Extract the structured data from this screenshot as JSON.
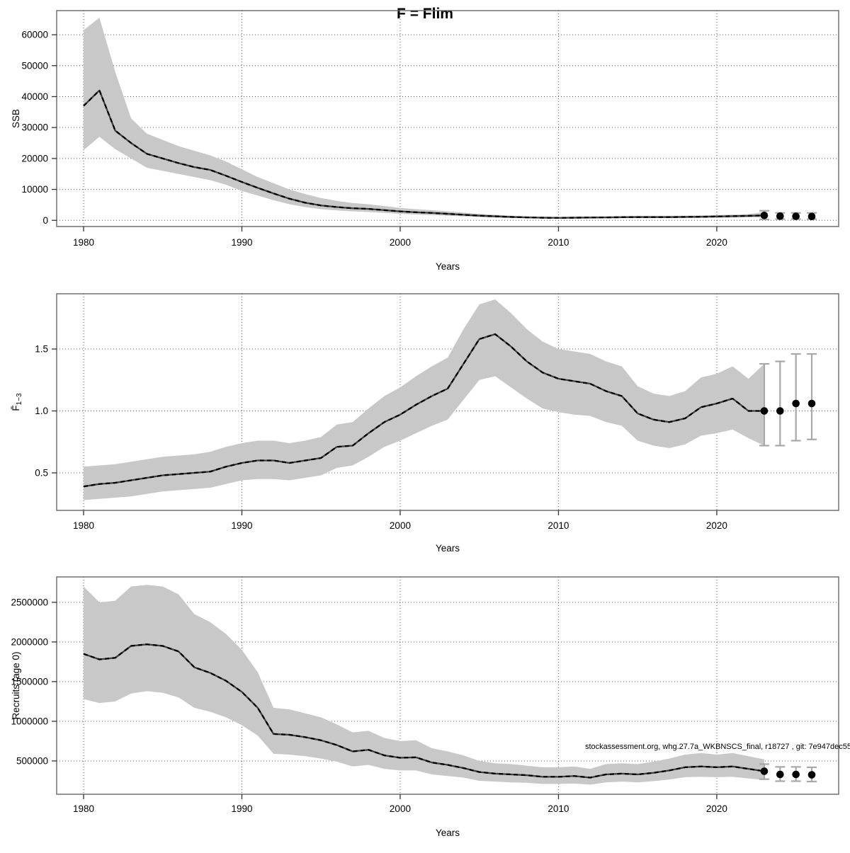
{
  "title": "F = Flim",
  "annotation": "stockassessment.org, whg.27.7a_WKBNSCS_final, r18727 , git: 7e947dec55",
  "colors": {
    "band": "#c8c8c8",
    "median_line": "#000000",
    "median_line_under": "#3f3f3f",
    "error_bar": "#a8a8a8",
    "point": "#000000",
    "grid": "#555555",
    "box": "#666666",
    "tick": "#333333"
  },
  "chart_data": [
    {
      "type": "line",
      "panel": "SSB",
      "ylabel": "SSB",
      "xlabel": "Years",
      "xlim": [
        1978.3,
        2027.7
      ],
      "ylim": [
        -2000,
        67800
      ],
      "x_ticks": [
        1980,
        1990,
        2000,
        2010,
        2020
      ],
      "y_ticks": [
        0,
        10000,
        20000,
        30000,
        40000,
        50000,
        60000
      ],
      "y_tick_labels": [
        "0",
        "10000",
        "20000",
        "30000",
        "40000",
        "50000",
        "60000"
      ],
      "grid": true,
      "legend": "none",
      "years": [
        1980,
        1981,
        1982,
        1983,
        1984,
        1985,
        1986,
        1987,
        1988,
        1989,
        1990,
        1991,
        1992,
        1993,
        1994,
        1995,
        1996,
        1997,
        1998,
        1999,
        2000,
        2001,
        2002,
        2003,
        2004,
        2005,
        2006,
        2007,
        2008,
        2009,
        2010,
        2011,
        2012,
        2013,
        2014,
        2015,
        2016,
        2017,
        2018,
        2019,
        2020,
        2021,
        2022,
        2023
      ],
      "median": [
        37000,
        42000,
        29000,
        25000,
        21500,
        20000,
        18500,
        17200,
        16300,
        14400,
        12400,
        10500,
        8700,
        7000,
        5700,
        4800,
        4300,
        3900,
        3700,
        3300,
        2900,
        2600,
        2400,
        2100,
        1800,
        1500,
        1300,
        1100,
        950,
        850,
        800,
        850,
        900,
        950,
        1000,
        1050,
        1050,
        1050,
        1100,
        1150,
        1250,
        1350,
        1450,
        1600
      ],
      "band_high": [
        61500,
        65500,
        48000,
        33000,
        28000,
        26000,
        24000,
        22500,
        21000,
        19000,
        16500,
        14000,
        12000,
        10000,
        8500,
        7200,
        6300,
        5600,
        5200,
        4600,
        4000,
        3600,
        3300,
        2900,
        2500,
        2100,
        1800,
        1500,
        1300,
        1200,
        1100,
        1200,
        1250,
        1300,
        1400,
        1450,
        1450,
        1450,
        1500,
        1600,
        1700,
        1850,
        2000,
        2700
      ],
      "band_low": [
        22700,
        27000,
        23000,
        20000,
        17000,
        16000,
        15000,
        14000,
        13000,
        11500,
        9500,
        8000,
        6500,
        5200,
        4300,
        3600,
        3200,
        2900,
        2700,
        2400,
        2100,
        1900,
        1700,
        1500,
        1300,
        1100,
        900,
        750,
        650,
        600,
        550,
        600,
        620,
        650,
        700,
        720,
        720,
        720,
        750,
        800,
        850,
        900,
        1000,
        900
      ],
      "forecast": {
        "years": [
          2023,
          2024,
          2025,
          2026
        ],
        "values": [
          1600,
          1350,
          1300,
          1250
        ],
        "low": [
          300,
          400,
          400,
          400
        ],
        "high": [
          3100,
          2400,
          2400,
          2400
        ]
      }
    },
    {
      "type": "line",
      "panel": "Fbar",
      "ylabel": "F1-3",
      "ylabel_main": "F̄",
      "ylabel_sub": "1−3",
      "xlabel": "Years",
      "xlim": [
        1978.3,
        2027.7
      ],
      "ylim": [
        0.197,
        1.946
      ],
      "x_ticks": [
        1980,
        1990,
        2000,
        2010,
        2020
      ],
      "y_ticks": [
        0.5,
        1.0,
        1.5
      ],
      "y_tick_labels": [
        "0.5",
        "1.0",
        "1.5"
      ],
      "grid": true,
      "legend": "none",
      "years": [
        1980,
        1981,
        1982,
        1983,
        1984,
        1985,
        1986,
        1987,
        1988,
        1989,
        1990,
        1991,
        1992,
        1993,
        1994,
        1995,
        1996,
        1997,
        1998,
        1999,
        2000,
        2001,
        2002,
        2003,
        2004,
        2005,
        2006,
        2007,
        2008,
        2009,
        2010,
        2011,
        2012,
        2013,
        2014,
        2015,
        2016,
        2017,
        2018,
        2019,
        2020,
        2021,
        2022,
        2023
      ],
      "median": [
        0.39,
        0.41,
        0.42,
        0.44,
        0.46,
        0.48,
        0.49,
        0.5,
        0.51,
        0.55,
        0.58,
        0.6,
        0.6,
        0.58,
        0.6,
        0.62,
        0.71,
        0.72,
        0.82,
        0.91,
        0.97,
        1.05,
        1.12,
        1.18,
        1.38,
        1.58,
        1.62,
        1.52,
        1.4,
        1.31,
        1.26,
        1.24,
        1.22,
        1.16,
        1.12,
        0.98,
        0.93,
        0.91,
        0.94,
        1.03,
        1.06,
        1.1,
        1.0,
        1.0
      ],
      "band_high": [
        0.55,
        0.56,
        0.57,
        0.59,
        0.61,
        0.63,
        0.64,
        0.65,
        0.67,
        0.71,
        0.74,
        0.76,
        0.76,
        0.74,
        0.76,
        0.79,
        0.89,
        0.91,
        1.02,
        1.12,
        1.19,
        1.28,
        1.36,
        1.43,
        1.66,
        1.86,
        1.9,
        1.79,
        1.66,
        1.56,
        1.5,
        1.48,
        1.46,
        1.4,
        1.36,
        1.2,
        1.14,
        1.12,
        1.16,
        1.27,
        1.3,
        1.36,
        1.26,
        1.38
      ],
      "band_low": [
        0.28,
        0.29,
        0.3,
        0.31,
        0.33,
        0.35,
        0.36,
        0.37,
        0.38,
        0.41,
        0.44,
        0.45,
        0.45,
        0.44,
        0.46,
        0.48,
        0.54,
        0.56,
        0.63,
        0.71,
        0.76,
        0.82,
        0.88,
        0.93,
        1.09,
        1.25,
        1.28,
        1.19,
        1.1,
        1.02,
        0.99,
        0.97,
        0.96,
        0.91,
        0.88,
        0.76,
        0.72,
        0.7,
        0.73,
        0.8,
        0.82,
        0.85,
        0.78,
        0.72
      ],
      "forecast": {
        "years": [
          2023,
          2024,
          2025,
          2026
        ],
        "values": [
          1.0,
          1.0,
          1.06,
          1.06
        ],
        "low": [
          0.72,
          0.72,
          0.76,
          0.77
        ],
        "high": [
          1.38,
          1.4,
          1.46,
          1.46
        ]
      }
    },
    {
      "type": "line",
      "panel": "Recruits",
      "ylabel": "Recruits (age 0)",
      "xlabel": "Years",
      "xlim": [
        1978.3,
        2027.7
      ],
      "ylim": [
        80000,
        2820000
      ],
      "x_ticks": [
        1980,
        1990,
        2000,
        2010,
        2020
      ],
      "y_ticks": [
        500000,
        1000000,
        1500000,
        2000000,
        2500000
      ],
      "y_tick_labels": [
        "500000",
        "1000000",
        "1500000",
        "2000000",
        "2500000"
      ],
      "grid": true,
      "legend": "none",
      "years": [
        1980,
        1981,
        1982,
        1983,
        1984,
        1985,
        1986,
        1987,
        1988,
        1989,
        1990,
        1991,
        1992,
        1993,
        1994,
        1995,
        1996,
        1997,
        1998,
        1999,
        2000,
        2001,
        2002,
        2003,
        2004,
        2005,
        2006,
        2007,
        2008,
        2009,
        2010,
        2011,
        2012,
        2013,
        2014,
        2015,
        2016,
        2017,
        2018,
        2019,
        2020,
        2021,
        2022,
        2023
      ],
      "median": [
        1850000,
        1780000,
        1800000,
        1950000,
        1970000,
        1950000,
        1880000,
        1680000,
        1610000,
        1510000,
        1370000,
        1170000,
        840000,
        830000,
        800000,
        760000,
        700000,
        620000,
        640000,
        570000,
        540000,
        545000,
        480000,
        450000,
        410000,
        360000,
        340000,
        330000,
        320000,
        300000,
        300000,
        310000,
        290000,
        330000,
        340000,
        330000,
        350000,
        380000,
        420000,
        430000,
        420000,
        430000,
        400000,
        370000
      ],
      "band_high": [
        2700000,
        2500000,
        2520000,
        2700000,
        2720000,
        2700000,
        2600000,
        2350000,
        2250000,
        2100000,
        1900000,
        1620000,
        1170000,
        1150000,
        1100000,
        1050000,
        960000,
        860000,
        880000,
        790000,
        750000,
        760000,
        660000,
        620000,
        570000,
        500000,
        470000,
        460000,
        440000,
        420000,
        420000,
        430000,
        400000,
        460000,
        470000,
        460000,
        490000,
        530000,
        580000,
        600000,
        580000,
        600000,
        560000,
        520000
      ],
      "band_low": [
        1280000,
        1230000,
        1250000,
        1350000,
        1380000,
        1360000,
        1300000,
        1170000,
        1120000,
        1050000,
        950000,
        820000,
        590000,
        580000,
        560000,
        530000,
        490000,
        430000,
        450000,
        400000,
        380000,
        380000,
        330000,
        310000,
        290000,
        250000,
        240000,
        230000,
        225000,
        210000,
        210000,
        215000,
        200000,
        230000,
        240000,
        230000,
        245000,
        265000,
        295000,
        300000,
        295000,
        300000,
        280000,
        260000
      ],
      "forecast": {
        "years": [
          2023,
          2024,
          2025,
          2026
        ],
        "values": [
          370000,
          330000,
          330000,
          325000
        ],
        "low": [
          270000,
          245000,
          245000,
          240000
        ],
        "high": [
          460000,
          425000,
          425000,
          420000
        ]
      }
    }
  ]
}
